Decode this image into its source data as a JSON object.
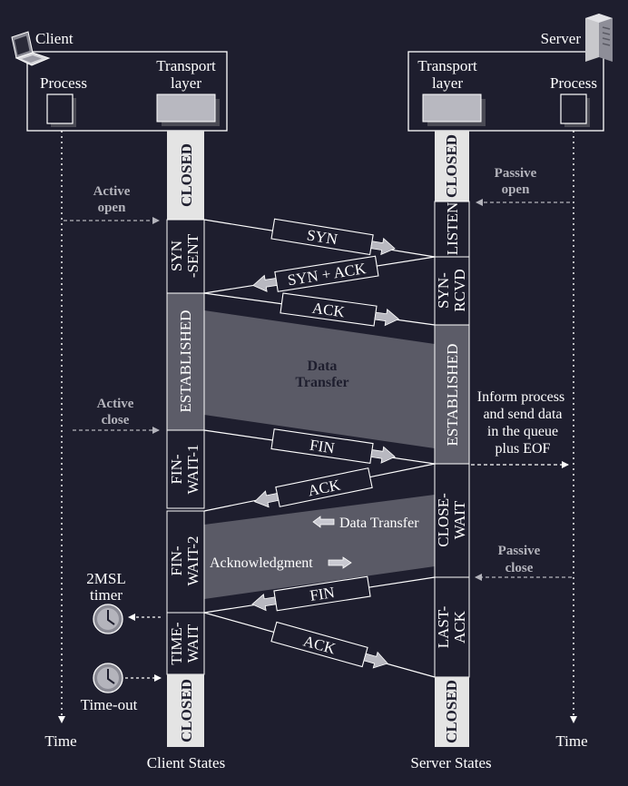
{
  "client": {
    "label": "Client",
    "process": "Process",
    "transport_1": "Transport",
    "transport_2": "layer"
  },
  "server": {
    "label": "Server",
    "process": "Process",
    "transport_1": "Transport",
    "transport_2": "layer"
  },
  "client_states": {
    "closed_top": "CLOSED",
    "syn_sent_1": "SYN",
    "syn_sent_2": "-SENT",
    "established": "ESTABLISHED",
    "fin_wait1_1": "FIN-",
    "fin_wait1_2": "WAIT-1",
    "fin_wait2_1": "FIN-",
    "fin_wait2_2": "WAIT-2",
    "time_wait_1": "TIME-",
    "time_wait_2": "WAIT",
    "closed_bottom": "CLOSED",
    "caption": "Client States"
  },
  "server_states": {
    "closed_top": "CLOSED",
    "listen": "LISTEN",
    "syn_rcvd_1": "SYN-",
    "syn_rcvd_2": "RCVD",
    "established": "ESTABLISHED",
    "close_wait_1": "CLOSE-",
    "close_wait_2": "WAIT",
    "last_ack_1": "LAST-",
    "last_ack_2": "ACK",
    "closed_bottom": "CLOSED",
    "caption": "Server States"
  },
  "segments": {
    "syn": "SYN",
    "syn_ack": "SYN + ACK",
    "ack1": "ACK",
    "fin1": "FIN",
    "ack2": "ACK",
    "fin2": "FIN",
    "ack3": "ACK"
  },
  "annotations": {
    "active_open_1": "Active",
    "active_open_2": "open",
    "passive_open_1": "Passive",
    "passive_open_2": "open",
    "active_close_1": "Active",
    "active_close_2": "close",
    "passive_close_1": "Passive",
    "passive_close_2": "close",
    "data_transfer_1": "Data",
    "data_transfer_2": "Transfer",
    "data_transfer_half": "Data Transfer",
    "acknowledgment": "Acknowledgment",
    "inform_1": "Inform process",
    "inform_2": "and send data",
    "inform_3": "in the queue",
    "inform_4": "plus EOF",
    "timer_1": "2MSL",
    "timer_2": "timer",
    "timeout": "Time-out",
    "time_left": "Time",
    "time_right": "Time"
  },
  "colors": {
    "background": "#1e1e2e",
    "state_bar_light": "#e4e4e4",
    "state_bar_dark": "#5c5c68",
    "data_region": "#5a5a66",
    "annotation": "#b4b4bc",
    "line": "#ffffff"
  }
}
